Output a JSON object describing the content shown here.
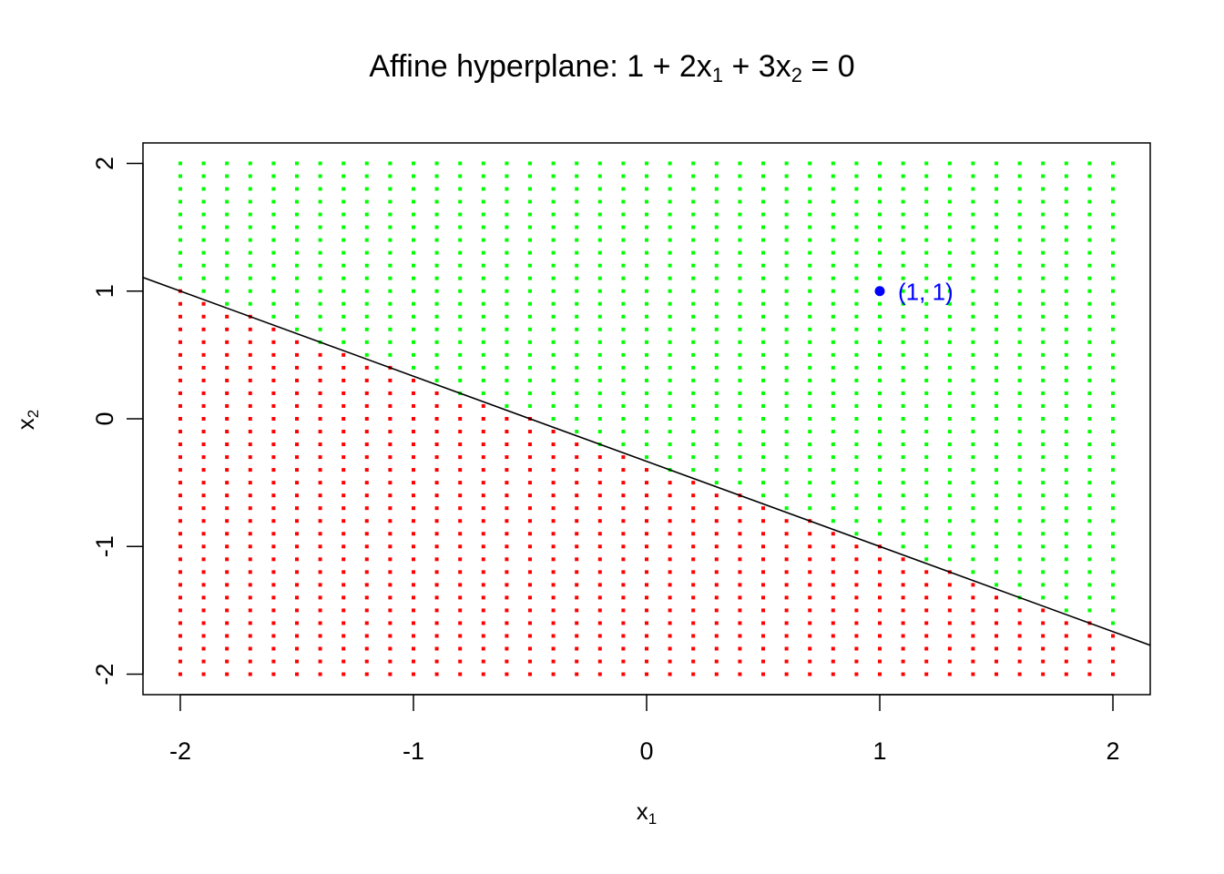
{
  "title": {
    "prefix": "Affine hyperplane: 1 + 2x",
    "sub1": "1",
    "mid": " + 3x",
    "sub2": "2",
    "suffix": " = 0"
  },
  "xlabel": {
    "base": "x",
    "sub": "1"
  },
  "ylabel": {
    "base": "x",
    "sub": "2"
  },
  "chart_data": {
    "type": "scatter",
    "hyperplane": {
      "intercept": 1,
      "coef_x1": 2,
      "coef_x2": 3
    },
    "grid": {
      "x_from": -2,
      "x_to": 2,
      "x_count": 41,
      "y_from": -2,
      "y_to": 2,
      "y_count": 41
    },
    "xlim": [
      -2.16,
      2.16
    ],
    "ylim": [
      -2.16,
      2.16
    ],
    "x_ticks": [
      -2,
      -1,
      0,
      1,
      2
    ],
    "y_ticks": [
      -2,
      -1,
      0,
      1,
      2
    ],
    "x_tick_labels": [
      "-2",
      "-1",
      "0",
      "1",
      "2"
    ],
    "y_tick_labels": [
      "-2",
      "-1",
      "0",
      "1",
      "2"
    ],
    "positive_color": "#00ff00",
    "negative_color": "#ff0000",
    "line_color": "#000000",
    "highlight_point": {
      "x": 1,
      "y": 1,
      "label": "(1, 1)",
      "color": "#0000ff"
    }
  }
}
